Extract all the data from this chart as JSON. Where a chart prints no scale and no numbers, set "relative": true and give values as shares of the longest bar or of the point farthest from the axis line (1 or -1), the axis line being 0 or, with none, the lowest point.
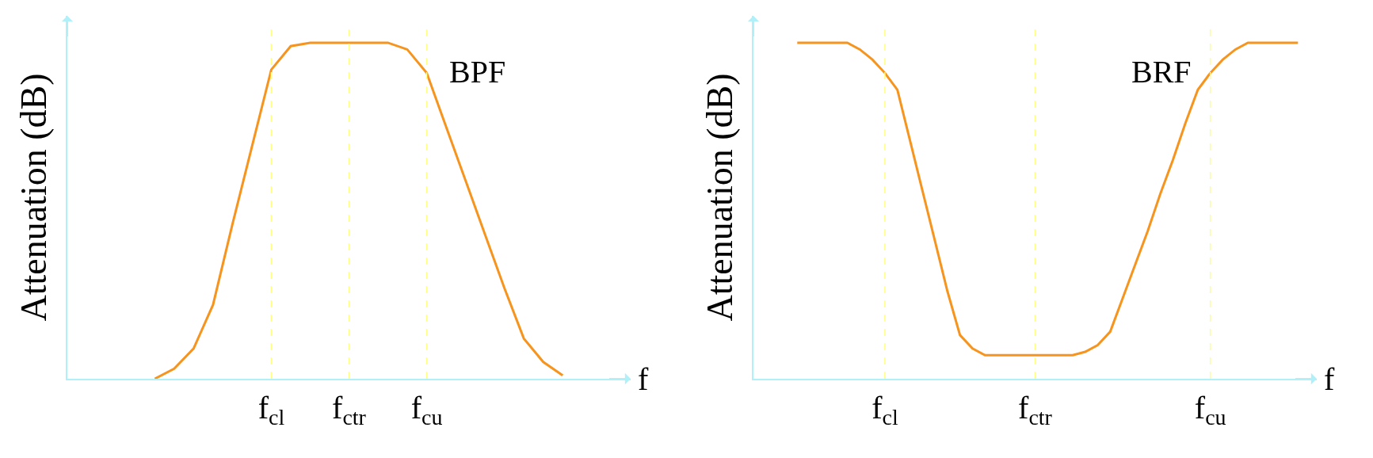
{
  "chart_data": [
    {
      "type": "line",
      "relative": true,
      "xlabel": "f",
      "ylabel": "Attenuation (dB)",
      "annotations": [
        "BPF"
      ],
      "categories": [
        null,
        null,
        null,
        null,
        null,
        null,
        null,
        null,
        null,
        null,
        "f$_{cl}$",
        null,
        null,
        null,
        "f$_{ctr}$",
        null,
        null,
        null,
        "f$_{cu}$",
        null,
        null,
        null,
        null,
        null,
        null,
        null,
        null,
        null,
        null
      ],
      "series": [
        {
          "color": "#f7941d",
          "values": [
            null,
            null,
            null,
            null,
            0,
            0.03,
            0.09,
            0.22,
            0.46,
            0.69,
            0.92,
            0.99,
            1,
            1,
            1,
            1,
            1,
            0.98,
            0.91,
            0.75,
            0.59,
            0.43,
            0.27,
            0.12,
            0.05,
            0.01,
            null,
            null,
            null
          ]
        }
      ],
      "ref_lines": [
        {
          "axis": "x",
          "value": "f$_{cl}$",
          "color": "#ffff80",
          "line_style": "dashed"
        },
        {
          "axis": "x",
          "value": "f$_{ctr}$",
          "color": "#ffff80",
          "line_style": "dashed"
        },
        {
          "axis": "x",
          "value": "f$_{cu}$",
          "color": "#ffff80",
          "line_style": "dashed"
        }
      ],
      "grid": false,
      "marker": "none",
      "line_style": "solid"
    },
    {
      "type": "line",
      "relative": true,
      "xlabel": "f",
      "ylabel": "Attenuation (dB)",
      "annotations": [
        "BRF"
      ],
      "categories": [
        null,
        null,
        null,
        null,
        null,
        null,
        null,
        null,
        null,
        null,
        "f$_{cl}$",
        null,
        null,
        null,
        null,
        null,
        null,
        null,
        null,
        null,
        null,
        null,
        "f$_{ctr}$",
        null,
        null,
        null,
        null,
        null,
        null,
        null,
        null,
        null,
        null,
        null,
        null,
        null,
        "f$_{cu}$",
        null,
        null,
        null,
        null,
        null,
        null,
        null,
        null
      ],
      "series": [
        {
          "color": "#f7941d",
          "values": [
            null,
            null,
            null,
            1,
            1,
            1,
            1,
            1,
            0.98,
            0.95,
            0.91,
            0.86,
            0.71,
            0.56,
            0.41,
            0.26,
            0.13,
            0.09,
            0.07,
            0.07,
            0.07,
            0.07,
            0.07,
            0.07,
            0.07,
            0.07,
            0.08,
            0.1,
            0.14,
            0.24,
            0.34,
            0.44,
            0.55,
            0.65,
            0.76,
            0.86,
            0.91,
            0.95,
            0.98,
            1,
            1,
            1,
            1,
            1,
            null
          ]
        }
      ],
      "ref_lines": [
        {
          "axis": "x",
          "value": "f$_{cl}$",
          "color": "#ffff80",
          "line_style": "dashed"
        },
        {
          "axis": "x",
          "value": "f$_{ctr}$",
          "color": "#ffff80",
          "line_style": "dashed"
        },
        {
          "axis": "x",
          "value": "f$_{cu}$",
          "color": "#ffff80",
          "line_style": "dashed"
        }
      ],
      "grid": false,
      "marker": "none",
      "line_style": "solid"
    }
  ]
}
